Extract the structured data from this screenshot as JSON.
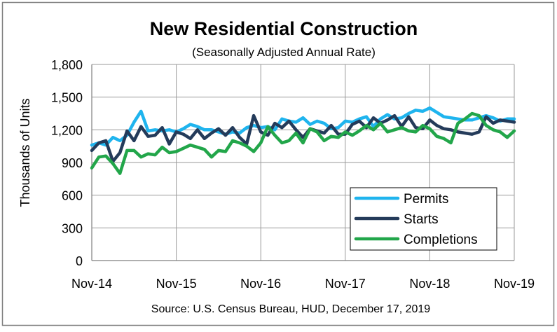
{
  "chart_data": {
    "type": "line",
    "title": "New Residential Construction",
    "subtitle": "(Seasonally Adjusted Annual Rate)",
    "xlabel": "",
    "ylabel": "Thousands of Units",
    "source": "Source:  U.S. Census Bureau, HUD, December 17, 2019",
    "ylim": [
      0,
      1800
    ],
    "yticks": [
      0,
      300,
      600,
      900,
      1200,
      1500,
      1800
    ],
    "ytick_labels": [
      "0",
      "300",
      "600",
      "900",
      "1,200",
      "1,500",
      "1,800"
    ],
    "xtick_labels": [
      "Nov-14",
      "Nov-15",
      "Nov-16",
      "Nov-17",
      "Nov-18",
      "Nov-19"
    ],
    "x_count": 61,
    "grid": true,
    "legend_position": "bottom-right",
    "series": [
      {
        "name": "Permits",
        "color": "#1fb4ee",
        "values": [
          1060,
          1080,
          1060,
          1130,
          1100,
          1150,
          1270,
          1370,
          1190,
          1200,
          1190,
          1200,
          1180,
          1210,
          1250,
          1230,
          1200,
          1200,
          1180,
          1160,
          1180,
          1170,
          1220,
          1240,
          1220,
          1230,
          1200,
          1300,
          1280,
          1270,
          1310,
          1250,
          1280,
          1260,
          1210,
          1220,
          1280,
          1270,
          1300,
          1320,
          1230,
          1300,
          1340,
          1300,
          1310,
          1350,
          1380,
          1370,
          1400,
          1360,
          1320,
          1310,
          1300,
          1290,
          1290,
          1310,
          1330,
          1310,
          1280,
          1300,
          1300
        ]
      },
      {
        "name": "Starts",
        "color": "#243b5a",
        "values": [
          1010,
          1080,
          1100,
          910,
          990,
          1190,
          1100,
          1230,
          1140,
          1150,
          1220,
          1070,
          1180,
          1160,
          1120,
          1200,
          1120,
          1170,
          1210,
          1150,
          1220,
          1130,
          1070,
          1330,
          1180,
          1150,
          1260,
          1220,
          1280,
          1200,
          1130,
          1210,
          1190,
          1170,
          1240,
          1160,
          1160,
          1250,
          1280,
          1220,
          1310,
          1260,
          1290,
          1330,
          1230,
          1320,
          1220,
          1210,
          1290,
          1240,
          1210,
          1200,
          1180,
          1170,
          1160,
          1180,
          1320,
          1260,
          1290,
          1280,
          1270
        ]
      },
      {
        "name": "Completions",
        "color": "#22a64a",
        "values": [
          850,
          950,
          960,
          890,
          800,
          1010,
          1010,
          950,
          980,
          970,
          1040,
          990,
          1000,
          1030,
          1060,
          1040,
          1020,
          950,
          1010,
          1000,
          1100,
          1080,
          1050,
          1000,
          1080,
          1230,
          1150,
          1080,
          1100,
          1170,
          1080,
          1210,
          1180,
          1100,
          1140,
          1130,
          1180,
          1150,
          1190,
          1240,
          1200,
          1260,
          1180,
          1200,
          1220,
          1190,
          1180,
          1240,
          1210,
          1140,
          1120,
          1080,
          1260,
          1300,
          1350,
          1330,
          1240,
          1200,
          1180,
          1130,
          1190
        ]
      }
    ]
  }
}
